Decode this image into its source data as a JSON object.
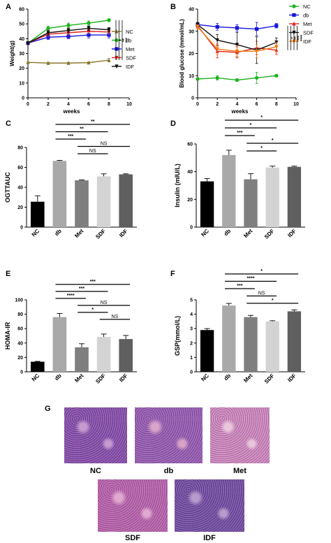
{
  "colors": {
    "nc": "#8c7a2e",
    "db": "#19b219",
    "met": "#1515e0",
    "sdf": "#e02020",
    "idf": "#111111",
    "bar_nc": "#000000",
    "bar_db": "#a9a9a9",
    "bar_met": "#7f7f7f",
    "bar_sdf": "#d3d3d3",
    "bar_idf": "#5f5f5f",
    "he_stain": "#7d4f9a"
  },
  "chart_data": [
    {
      "panel": "A",
      "type": "line",
      "xlabel": "weeks",
      "ylabel": "Weight(g)",
      "xlim": [
        0,
        10
      ],
      "ylim": [
        0,
        60
      ],
      "xticks": [
        0,
        2,
        4,
        6,
        8,
        10
      ],
      "yticks": [
        0,
        10,
        20,
        30,
        40,
        50,
        60
      ],
      "x": [
        0,
        2,
        4,
        6,
        8
      ],
      "series": [
        {
          "name": "NC",
          "key": "nc",
          "marker": "triangle-up",
          "values": [
            24,
            23.5,
            23.5,
            23.8,
            25.5
          ],
          "err": [
            0.5,
            0.5,
            0.5,
            0.5,
            1.2
          ]
        },
        {
          "name": "db",
          "key": "db",
          "marker": "circle",
          "values": [
            37,
            47,
            49,
            50.5,
            52.5
          ],
          "err": [
            1,
            1.5,
            1.5,
            1.5,
            1
          ]
        },
        {
          "name": "Met",
          "key": "met",
          "marker": "square",
          "values": [
            37,
            41,
            41.5,
            42.5,
            42.5
          ],
          "err": [
            1,
            1.5,
            1.5,
            2,
            2
          ]
        },
        {
          "name": "SDF",
          "key": "sdf",
          "marker": "triangle-down",
          "values": [
            37,
            43,
            44,
            45,
            44.5
          ],
          "err": [
            1,
            1.5,
            1.5,
            1.5,
            1.5
          ]
        },
        {
          "name": "IDF",
          "key": "idf",
          "marker": "triangle-down",
          "values": [
            37,
            44,
            45.5,
            47,
            46
          ],
          "err": [
            1,
            1.5,
            1.5,
            1.5,
            1.5
          ]
        }
      ],
      "sig": [
        "*",
        "**",
        "***"
      ]
    },
    {
      "panel": "B",
      "type": "line",
      "xlabel": "weeks",
      "ylabel": "Blood glucose (mmol/mL)",
      "xlim": [
        0,
        10
      ],
      "ylim": [
        0,
        40
      ],
      "xticks": [
        0,
        2,
        4,
        6,
        8,
        10
      ],
      "yticks": [
        0,
        10,
        20,
        30,
        40
      ],
      "x": [
        0,
        2,
        4,
        6,
        8
      ],
      "series": [
        {
          "name": "NC",
          "key": "nc_b",
          "color_key": "db",
          "marker": "circle",
          "values": [
            8.5,
            9,
            8,
            9,
            10
          ],
          "err": [
            0.5,
            1,
            0.5,
            2.5,
            0.5
          ]
        },
        {
          "name": "db",
          "key": "db_b",
          "color_key": "met",
          "marker": "square",
          "values": [
            33,
            32,
            31.5,
            31,
            32.5
          ],
          "err": [
            1,
            1.5,
            1.5,
            3,
            1
          ]
        },
        {
          "name": "Met",
          "key": "met_b",
          "color_key": "sdf",
          "marker": "triangle-up",
          "values": [
            32.5,
            21,
            20.5,
            22.5,
            21.5
          ],
          "err": [
            1,
            3,
            2.5,
            3,
            2
          ]
        },
        {
          "name": "SDF",
          "key": "sdf_b",
          "color_key": "idf",
          "marker": "triangle-down",
          "values": [
            33,
            26,
            24,
            21.5,
            25
          ],
          "err": [
            1,
            2.5,
            5.5,
            6,
            2
          ]
        },
        {
          "name": "IDF",
          "key": "idf_b",
          "color_key": "orange",
          "marker": "triangle-down",
          "values": [
            32,
            22,
            21,
            21,
            23
          ],
          "err": [
            1,
            2.5,
            2.5,
            3,
            2
          ]
        }
      ],
      "sig": [
        "*",
        "**",
        "***",
        "****"
      ]
    },
    {
      "panel": "C",
      "type": "bar",
      "ylabel": "OGTTAUC",
      "categories": [
        "NC",
        "db",
        "Met",
        "SDF",
        "IDF"
      ],
      "values": [
        25.5,
        66.5,
        47,
        51,
        53
      ],
      "err": [
        6,
        0.5,
        0.5,
        2.5,
        0.5
      ],
      "ylim": [
        0,
        80
      ],
      "yticks": [
        0,
        20,
        40,
        60,
        80
      ],
      "brackets": [
        {
          "from": 1,
          "to": 4,
          "label": "**"
        },
        {
          "from": 1,
          "to": 3,
          "label": "**"
        },
        {
          "from": 1,
          "to": 2,
          "label": "***"
        },
        {
          "from": 2,
          "to": 4,
          "label": "NS"
        },
        {
          "from": 2,
          "to": 3,
          "label": "NS"
        }
      ]
    },
    {
      "panel": "D",
      "type": "bar",
      "ylabel": "Insulin (mIU/L)",
      "categories": [
        "NC",
        "db",
        "Met",
        "SDF",
        "IDF"
      ],
      "values": [
        33,
        52,
        34.5,
        43,
        43.5
      ],
      "err": [
        2,
        3.5,
        4,
        1,
        0.5
      ],
      "ylim": [
        0,
        60
      ],
      "yticks": [
        0,
        20,
        40,
        60
      ],
      "brackets": [
        {
          "from": 1,
          "to": 4,
          "label": "*"
        },
        {
          "from": 1,
          "to": 3,
          "label": "*"
        },
        {
          "from": 1,
          "to": 2,
          "label": "***"
        },
        {
          "from": 2,
          "to": 4,
          "label": "*"
        },
        {
          "from": 2,
          "to": 3,
          "label": "*"
        }
      ]
    },
    {
      "panel": "E",
      "type": "bar",
      "ylabel": "HOMA-IR",
      "categories": [
        "NC",
        "db",
        "Met",
        "SDF",
        "IDF"
      ],
      "values": [
        14,
        76,
        34,
        48.5,
        45.5
      ],
      "err": [
        0.5,
        5,
        5,
        4,
        5
      ],
      "ylim": [
        0,
        100
      ],
      "yticks": [
        0,
        20,
        40,
        60,
        80,
        100
      ],
      "brackets": [
        {
          "from": 1,
          "to": 4,
          "label": "***"
        },
        {
          "from": 1,
          "to": 3,
          "label": "***"
        },
        {
          "from": 1,
          "to": 2,
          "label": "****"
        },
        {
          "from": 2,
          "to": 4,
          "label": "NS"
        },
        {
          "from": 2,
          "to": 3,
          "label": "*"
        },
        {
          "from": 3,
          "to": 4,
          "label": "NS"
        }
      ]
    },
    {
      "panel": "F",
      "type": "bar",
      "ylabel": "GSP(mmol/L)",
      "categories": [
        "NC",
        "db",
        "Met",
        "SDF",
        "IDF"
      ],
      "values": [
        2.9,
        4.6,
        3.8,
        3.5,
        4.2
      ],
      "err": [
        0.1,
        0.15,
        0.12,
        0.05,
        0.1
      ],
      "ylim": [
        0,
        5
      ],
      "yticks": [
        0,
        1,
        2,
        3,
        4,
        5
      ],
      "brackets": [
        {
          "from": 1,
          "to": 4,
          "label": "*"
        },
        {
          "from": 1,
          "to": 3,
          "label": "****"
        },
        {
          "from": 1,
          "to": 2,
          "label": "***"
        },
        {
          "from": 2,
          "to": 3,
          "label": "NS"
        },
        {
          "from": 2,
          "to": 4,
          "label": "*"
        }
      ]
    }
  ],
  "histology": {
    "panel": "G",
    "images": [
      {
        "label": "NC"
      },
      {
        "label": "db"
      },
      {
        "label": "Met"
      },
      {
        "label": "SDF"
      },
      {
        "label": "IDF"
      }
    ]
  }
}
